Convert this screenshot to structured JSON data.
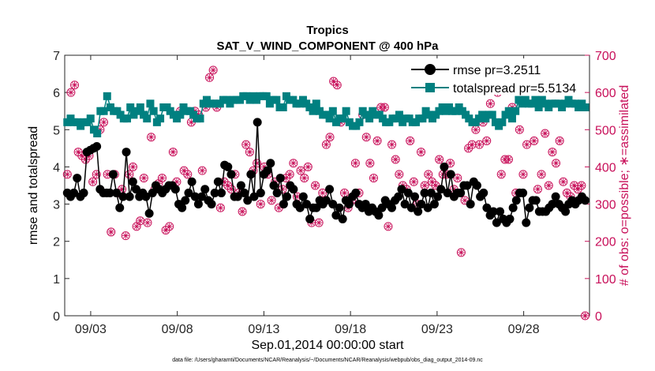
{
  "chart_data": {
    "type": "line",
    "title": "Tropics",
    "subtitle": "SAT_V_WIND_COMPONENT @ 400 hPa",
    "xlabel": "Sep.01,2014 00:00:00 start",
    "ylabel_left": "rmse and totalspread",
    "ylabel_right": "# of obs: o=possible; ∗=assimilated",
    "footnote": "data file: /Users/gharamti/Documents/NCAR/Reanalysis/~/Documents/NCAR/Reanalysis/webpub/obs_diag_output_2014-09.nc",
    "xlim": [
      1.5,
      31.8
    ],
    "ylim_left": [
      0,
      7
    ],
    "ylim_right": [
      0,
      700
    ],
    "xticks": [
      {
        "value": 3,
        "label": "09/03"
      },
      {
        "value": 8,
        "label": "09/08"
      },
      {
        "value": 13,
        "label": "09/13"
      },
      {
        "value": 18,
        "label": "09/18"
      },
      {
        "value": 23,
        "label": "09/23"
      },
      {
        "value": 28,
        "label": "09/28"
      }
    ],
    "yticks_left": [
      "0",
      "1",
      "2",
      "3",
      "4",
      "5",
      "6",
      "7"
    ],
    "yticks_right": [
      "0",
      "100",
      "200",
      "300",
      "400",
      "500",
      "600",
      "700"
    ],
    "colors": {
      "rmse": "#000000",
      "totalspread": "#008080",
      "obs": "#c8105a"
    },
    "series": [
      {
        "name": "rmse pr=3.2511",
        "values": [
          3.3,
          3.2,
          3.3,
          3.7,
          3.2,
          3.3,
          4.4,
          4.45,
          4.5,
          4.55,
          3.4,
          3.3,
          3.3,
          3.3,
          3.8,
          3.3,
          2.9,
          3.2,
          4.4,
          3.2,
          3.6,
          3.4,
          3.2,
          3.3,
          3.2,
          2.75,
          3.3,
          3.5,
          3.4,
          3.3,
          3.4,
          3.5,
          3.5,
          3.4,
          3.0,
          2.9,
          3.1,
          3.3,
          3.6,
          3.2,
          3.0,
          3.2,
          3.4,
          3.1,
          3.0,
          3.3,
          3.6,
          3.3,
          4.05,
          4.0,
          3.8,
          3.2,
          3.2,
          3.5,
          3.3,
          3.1,
          3.8,
          3.2,
          5.2,
          3.3,
          3.8,
          3.9,
          4.1,
          3.5,
          3.3,
          3.7,
          3.0,
          3.2,
          3.5,
          3.4,
          3.0,
          2.9,
          3.2,
          3.0,
          2.6,
          2.9,
          2.9,
          3.1,
          3.0,
          3.1,
          3.4,
          3.0,
          2.7,
          2.9,
          2.6,
          3.1,
          3.0,
          3.2,
          3.3,
          3.0,
          2.9,
          3.0,
          2.8,
          2.9,
          2.8,
          2.7,
          2.9,
          3.1,
          3.0,
          2.9,
          3.1,
          3.2,
          3.4,
          3.0,
          3.3,
          2.9,
          3.2,
          2.8,
          3.0,
          3.3,
          2.9,
          3.3,
          3.0,
          3.2,
          3.4,
          4.0,
          3.3,
          3.8,
          3.2,
          3.3,
          3.3,
          3.5,
          3.5,
          3.0,
          3.6,
          3.5,
          3.2,
          3.3,
          2.9,
          2.7,
          2.8,
          2.5,
          2.8,
          2.6,
          2.5,
          2.6,
          2.9,
          3.1,
          3.3,
          3.3,
          2.5,
          2.9,
          3.1,
          3.1,
          2.8,
          2.8,
          2.8,
          2.9,
          3.0,
          3.2,
          3.0,
          2.9,
          2.8,
          3.0,
          3.1,
          3.0,
          3.1,
          3.2,
          3.1
        ]
      },
      {
        "name": "totalspread pr=5.5134",
        "values": [
          5.2,
          5.3,
          5.2,
          5.2,
          5.1,
          5.2,
          5.2,
          5.3,
          5.0,
          4.9,
          5.5,
          5.5,
          5.9,
          5.6,
          5.5,
          5.5,
          5.4,
          5.3,
          5.3,
          5.6,
          5.4,
          5.5,
          5.6,
          5.4,
          5.3,
          5.7,
          5.5,
          5.2,
          5.3,
          5.6,
          5.6,
          5.5,
          5.4,
          5.3,
          5.4,
          5.6,
          5.5,
          5.5,
          5.4,
          5.3,
          5.3,
          5.7,
          5.8,
          5.7,
          5.7,
          5.7,
          5.7,
          5.8,
          5.8,
          5.7,
          5.8,
          5.8,
          5.8,
          5.9,
          5.9,
          5.8,
          5.9,
          5.8,
          5.9,
          5.9,
          5.9,
          5.7,
          5.8,
          5.8,
          5.6,
          5.6,
          5.9,
          5.8,
          5.8,
          5.7,
          5.7,
          5.8,
          5.7,
          5.6,
          5.5,
          5.7,
          5.5,
          5.4,
          5.4,
          5.3,
          5.5,
          5.2,
          5.3,
          5.3,
          5.5,
          5.2,
          5.1,
          5.1,
          5.2,
          5.5,
          5.4,
          5.3,
          5.5,
          5.4,
          5.4,
          5.3,
          5.2,
          5.2,
          5.3,
          5.3,
          5.4,
          5.2,
          5.3,
          5.3,
          5.2,
          5.2,
          5.3,
          5.3,
          5.5,
          5.4,
          5.3,
          5.4,
          5.5,
          5.6,
          5.5,
          5.6,
          5.5,
          5.5,
          5.6,
          5.5,
          5.4,
          5.3,
          5.2,
          5.2,
          5.3,
          5.4,
          5.3,
          5.4,
          5.4,
          5.2,
          5.1,
          5.2,
          5.4,
          5.5,
          5.3,
          5.5,
          5.8,
          5.7,
          5.8,
          5.7,
          5.7,
          5.8,
          5.6,
          5.8,
          5.7,
          5.6,
          5.7,
          5.7,
          5.7,
          5.6,
          5.7,
          5.8,
          5.7,
          5.7,
          5.6,
          5.7,
          5.6
        ]
      },
      {
        "name": "obs_possible",
        "axis": "right",
        "values": [
          380,
          600,
          620,
          440,
          430,
          420,
          430,
          360,
          380,
          500,
          520,
          380,
          225,
          380,
          330,
          340,
          215,
          380,
          400,
          240,
          255,
          370,
          250,
          480,
          340,
          355,
          370,
          230,
          240,
          440,
          360,
          550,
          390,
          380,
          520,
          550,
          540,
          390,
          560,
          640,
          660,
          560,
          290,
          360,
          350,
          340,
          380,
          330,
          280,
          460,
          440,
          390,
          410,
          300,
          400,
          380,
          310,
          360,
          290,
          340,
          370,
          380,
          410,
          320,
          390,
          370,
          400,
          250,
          350,
          250,
          330,
          460,
          480,
          630,
          620,
          520,
          330,
          290,
          310,
          410,
          330,
          540,
          480,
          410,
          370,
          470,
          560,
          560,
          240,
          460,
          420,
          380,
          350,
          340,
          470,
          360,
          300,
          440,
          350,
          380,
          360,
          350,
          420,
          380,
          380,
          410,
          340,
          370,
          170,
          310,
          450,
          460,
          500,
          460,
          520,
          470,
          570,
          610,
          600,
          380,
          420,
          420,
          560,
          330,
          500,
          380,
          460,
          630,
          470,
          340,
          380,
          490,
          350,
          440,
          410,
          470,
          360,
          330,
          320,
          350,
          340,
          350,
          0
        ]
      }
    ],
    "legend": {
      "position": "top-right",
      "entries": [
        "rmse pr=3.2511",
        "totalspread pr=5.5134"
      ]
    }
  }
}
